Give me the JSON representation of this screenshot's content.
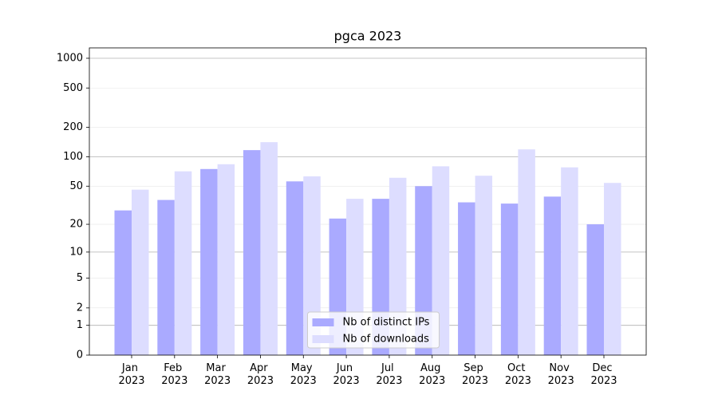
{
  "chart_data": {
    "type": "bar",
    "title": "pgca 2023",
    "categories": [
      "Jan 2023",
      "Feb 2023",
      "Mar 2023",
      "Apr 2023",
      "May 2023",
      "Jun 2023",
      "Jul 2023",
      "Aug 2023",
      "Sep 2023",
      "Oct 2023",
      "Nov 2023",
      "Dec 2023"
    ],
    "series": [
      {
        "name": "Nb of distinct IPs",
        "color": "#aaaaff",
        "values": [
          28,
          36,
          75,
          117,
          56,
          23,
          37,
          50,
          34,
          33,
          39,
          20
        ]
      },
      {
        "name": "Nb of downloads",
        "color": "#ddddff",
        "values": [
          46,
          71,
          84,
          141,
          63,
          37,
          61,
          80,
          64,
          119,
          78,
          54
        ]
      }
    ],
    "yscale": "log1p",
    "ylim": [
      0,
      1273
    ],
    "yticks": [
      0,
      1,
      2,
      5,
      10,
      20,
      50,
      100,
      200,
      500,
      1000
    ],
    "grid": true,
    "legend": "lower center"
  }
}
